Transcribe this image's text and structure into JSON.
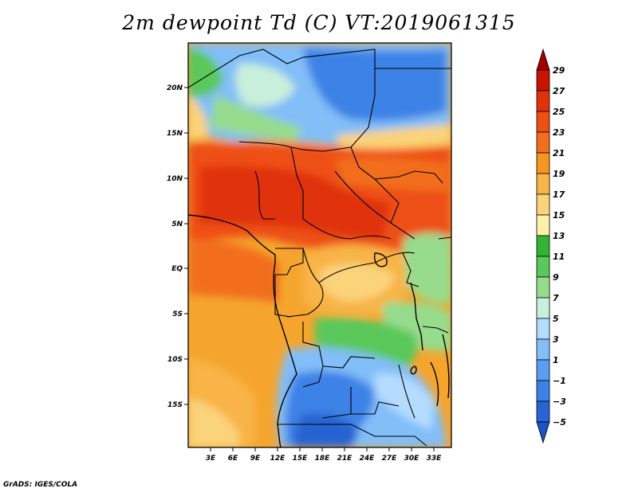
{
  "title": "2m dewpoint Td (C) VT:2019061315",
  "credit": "GrADS: IGES/COLA",
  "lat_labels": [
    "20N",
    "15N",
    "10N",
    "5N",
    "EQ",
    "5S",
    "10S",
    "15S"
  ],
  "lon_labels": [
    "3E",
    "6E",
    "9E",
    "12E",
    "15E",
    "18E",
    "21E",
    "24E",
    "27E",
    "30E",
    "33E"
  ],
  "colorbar": {
    "labels": [
      "29",
      "27",
      "25",
      "23",
      "21",
      "19",
      "17",
      "15",
      "13",
      "11",
      "9",
      "7",
      "5",
      "3",
      "1",
      "−1",
      "−3",
      "−5"
    ],
    "colors": [
      "#a00000",
      "#c81400",
      "#e0320a",
      "#ee5014",
      "#f26e1e",
      "#f5961e",
      "#f8b446",
      "#fbd37a",
      "#fdf0a8",
      "#32b432",
      "#5ac85a",
      "#96dc8c",
      "#c8f0dc",
      "#b4dcff",
      "#82bef8",
      "#5a9ef0",
      "#3c82e6",
      "#2864d2",
      "#1e50c8"
    ]
  }
}
